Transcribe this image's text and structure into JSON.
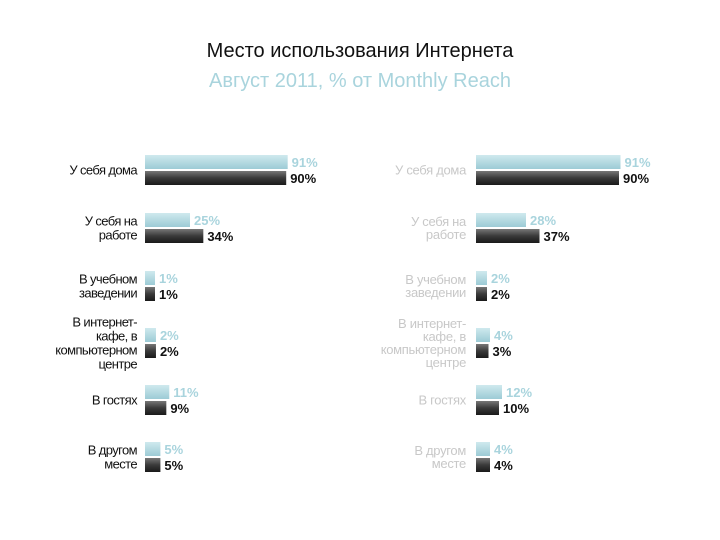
{
  "title": "Место использования Интернета",
  "subtitle": "Август 2011, % от Monthly Reach",
  "colors": {
    "series_light": "#a9d4dd",
    "series_dark": "#333333",
    "right_labels": "#c8c8c8"
  },
  "chart_data": [
    {
      "type": "bar",
      "orientation": "horizontal",
      "categories": [
        [
          "У себя дома"
        ],
        [
          "У себя на",
          "работе"
        ],
        [
          "В учебном",
          "заведении"
        ],
        [
          "В интернет-",
          "кафе, в",
          "компьютерном",
          "центре"
        ],
        [
          "В гостях"
        ],
        [
          "В другом",
          "месте"
        ]
      ],
      "series": [
        {
          "values": [
            91,
            25,
            1,
            2,
            11,
            5
          ],
          "labels": [
            "91%",
            "25%",
            "1%",
            "2%",
            "11%",
            "5%"
          ]
        },
        {
          "values": [
            90,
            34,
            1,
            2,
            9,
            5
          ],
          "labels": [
            "90%",
            "34%",
            "1%",
            "2%",
            "9%",
            "5%"
          ]
        }
      ],
      "xlim": [
        0,
        100
      ]
    },
    {
      "type": "bar",
      "orientation": "horizontal",
      "categories": [
        [
          "У себя дома"
        ],
        [
          "У себя на",
          "работе"
        ],
        [
          "В учебном",
          "заведении"
        ],
        [
          "В интернет-",
          "кафе, в",
          "компьютерном",
          "центре"
        ],
        [
          "В гостях"
        ],
        [
          "В другом",
          "месте"
        ]
      ],
      "series": [
        {
          "values": [
            91,
            28,
            2,
            4,
            12,
            4
          ],
          "labels": [
            "91%",
            "28%",
            "2%",
            "4%",
            "12%",
            "4%"
          ]
        },
        {
          "values": [
            90,
            37,
            2,
            3,
            10,
            4
          ],
          "labels": [
            "90%",
            "37%",
            "2%",
            "3%",
            "10%",
            "4%"
          ]
        }
      ],
      "xlim": [
        0,
        100
      ]
    }
  ]
}
